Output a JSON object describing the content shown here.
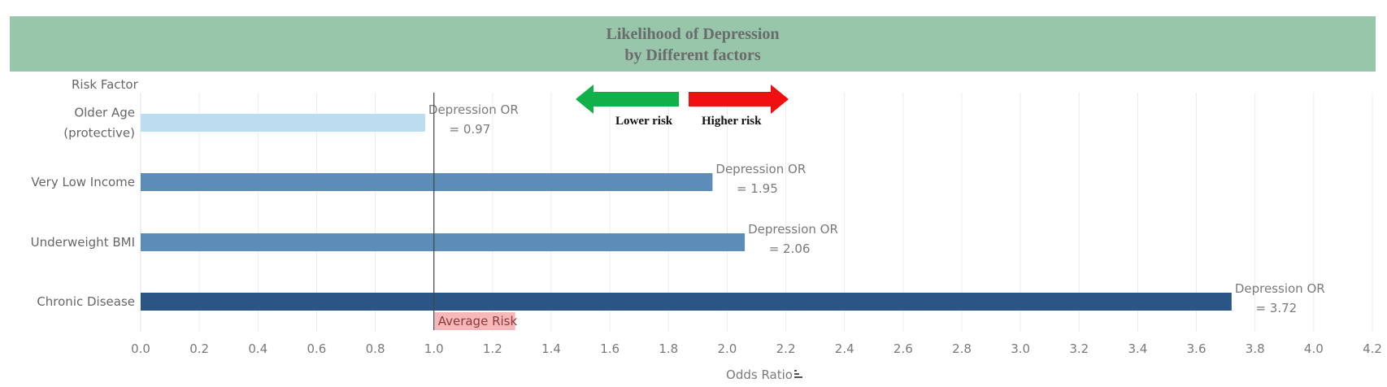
{
  "chart_data": {
    "type": "bar",
    "orientation": "horizontal",
    "title": [
      "Likelihood of Depression",
      "by Different factors"
    ],
    "ylabel": "Risk Factor",
    "xlabel": "Odds Ratio",
    "xlim": [
      0,
      4.2
    ],
    "xticks": [
      "0.0",
      "0.2",
      "0.4",
      "0.6",
      "0.8",
      "1.0",
      "1.2",
      "1.4",
      "1.6",
      "1.8",
      "2.0",
      "2.2",
      "2.4",
      "2.6",
      "2.8",
      "3.0",
      "3.2",
      "3.4",
      "3.6",
      "3.8",
      "4.0",
      "4.2"
    ],
    "grid": true,
    "categories": [
      {
        "label": [
          "Older Age",
          "(protective)"
        ],
        "value": 0.97,
        "color": "#bcdcf0",
        "data_label": [
          "Depression OR",
          "= 0.97"
        ]
      },
      {
        "label": [
          "Very Low Income"
        ],
        "value": 1.95,
        "color": "#5b8db8",
        "data_label": [
          "Depression OR",
          "= 1.95"
        ]
      },
      {
        "label": [
          "Underweight BMI"
        ],
        "value": 2.06,
        "color": "#5b8db8",
        "data_label": [
          "Depression OR",
          "= 2.06"
        ]
      },
      {
        "label": [
          "Chronic Disease"
        ],
        "value": 3.72,
        "color": "#2b5584",
        "data_label": [
          "Depression OR",
          "= 3.72"
        ]
      }
    ],
    "reference_line": {
      "value": 1.0,
      "label": "Average Risk"
    },
    "legend": {
      "lower": "Lower risk",
      "higher": "Higher risk",
      "lower_color": "#12b04a",
      "higher_color": "#f01010"
    },
    "colors": {
      "title_band": "#97c6ab",
      "annotation_bg": "#f6b8b8",
      "grid": "#ececec",
      "reference": "#444444"
    }
  }
}
